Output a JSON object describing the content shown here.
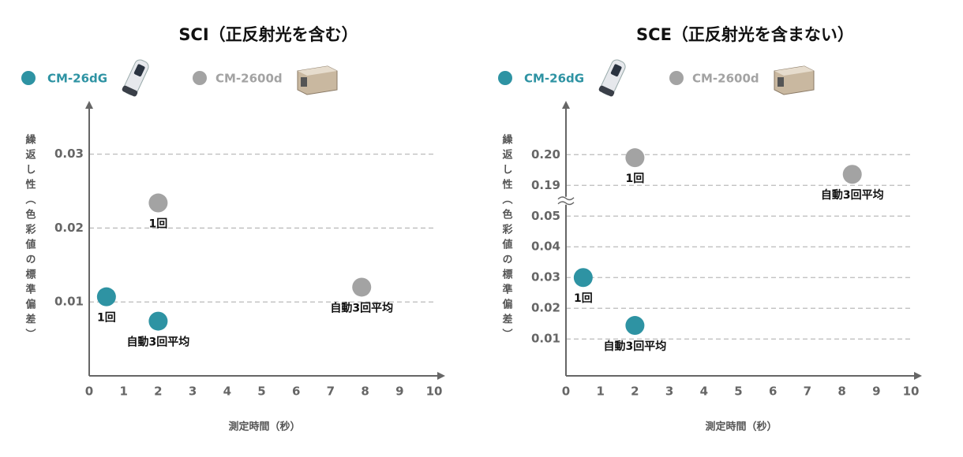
{
  "chart_data": [
    {
      "type": "scatter",
      "title": "SCI（正反射光を含む）",
      "x_label": "測定時間（秒）",
      "y_label": "繰返し性（色彩値の標準偏差）",
      "xlim": [
        0,
        10
      ],
      "xticks": [
        0,
        1,
        2,
        3,
        4,
        5,
        6,
        7,
        8,
        9,
        10
      ],
      "ylim": [
        0,
        0.037
      ],
      "yticks": [
        0.01,
        0.02,
        0.03
      ],
      "grid": true,
      "series": [
        {
          "name": "CM-26dG",
          "color": "#2e93a3",
          "x": [
            0.5,
            2
          ],
          "values": [
            0.0107,
            0.0074
          ],
          "point_labels": [
            "1回",
            "自動3回平均"
          ]
        },
        {
          "name": "CM-2600d",
          "color": "#a3a3a3",
          "x": [
            2,
            7.9
          ],
          "values": [
            0.0234,
            0.012
          ],
          "point_labels": [
            "1回",
            "自動3回平均"
          ]
        }
      ]
    },
    {
      "type": "scatter",
      "title": "SCE（正反射光を含まない）",
      "x_label": "測定時間（秒）",
      "y_label": "繰返し性（色彩値の標準偏差）",
      "xlim": [
        0,
        10
      ],
      "xticks": [
        0,
        1,
        2,
        3,
        4,
        5,
        6,
        7,
        8,
        9,
        10
      ],
      "ylim": [
        -0.002,
        0.217
      ],
      "ybreak": [
        0.05,
        0.19
      ],
      "yticks": [
        0.01,
        0.02,
        0.03,
        0.04,
        0.05,
        0.19,
        {
          "value": 0.2,
          "label": "0.20"
        }
      ],
      "grid": true,
      "series": [
        {
          "name": "CM-26dG",
          "color": "#2e93a3",
          "x": [
            0.5,
            2
          ],
          "values": [
            0.03,
            0.0144
          ],
          "point_labels": [
            "1回",
            "自動3回平均"
          ]
        },
        {
          "name": "CM-2600d",
          "color": "#a3a3a3",
          "x": [
            2,
            8.3
          ],
          "values": [
            0.199,
            0.1936
          ],
          "point_labels": [
            "1回",
            "自動3回平均"
          ]
        }
      ]
    }
  ]
}
